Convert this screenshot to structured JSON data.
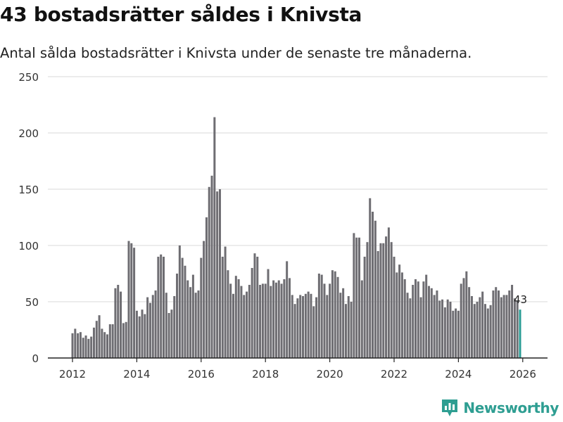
{
  "title": "43 bostadsrätter såldes i Knivsta",
  "subtitle": "Antal sålda bostadsrätter i Knivsta under de senaste tre månaderna.",
  "brand": {
    "name": "Newsworthy",
    "icon": "bar-chart-logo-icon"
  },
  "colors": {
    "bar": "#6e6d72",
    "highlight": "#2a9d95",
    "grid": "#d9d9d9",
    "axis": "#222222",
    "text": "#333333"
  },
  "chart_data": {
    "type": "bar",
    "title": "43 bostadsrätter såldes i Knivsta",
    "xlabel": "",
    "ylabel": "",
    "ylim": [
      0,
      250
    ],
    "yticks": [
      0,
      50,
      100,
      150,
      200,
      250
    ],
    "x_ticks": [
      2012,
      2014,
      2016,
      2018,
      2020,
      2022,
      2024,
      2026
    ],
    "start": {
      "year": 2012,
      "month": 1
    },
    "period": "month",
    "highlight_label": "43",
    "values": [
      22,
      26,
      22,
      23,
      18,
      20,
      17,
      19,
      27,
      33,
      38,
      26,
      23,
      21,
      30,
      30,
      62,
      65,
      59,
      31,
      32,
      104,
      102,
      98,
      42,
      37,
      43,
      39,
      54,
      49,
      56,
      60,
      90,
      92,
      90,
      58,
      40,
      43,
      55,
      75,
      100,
      89,
      82,
      69,
      63,
      74,
      58,
      60,
      89,
      104,
      125,
      152,
      162,
      214,
      148,
      150,
      90,
      99,
      78,
      66,
      57,
      73,
      70,
      64,
      56,
      59,
      65,
      80,
      93,
      90,
      65,
      66,
      66,
      79,
      64,
      69,
      67,
      69,
      66,
      70,
      86,
      71,
      56,
      48,
      53,
      56,
      55,
      57,
      59,
      57,
      46,
      54,
      75,
      74,
      66,
      56,
      66,
      78,
      77,
      72,
      58,
      62,
      48,
      55,
      50,
      111,
      107,
      107,
      69,
      90,
      103,
      142,
      130,
      122,
      95,
      102,
      102,
      108,
      116,
      103,
      90,
      76,
      83,
      76,
      70,
      58,
      53,
      65,
      70,
      68,
      54,
      68,
      74,
      64,
      62,
      56,
      60,
      51,
      52,
      45,
      52,
      50,
      42,
      44,
      42,
      66,
      71,
      77,
      63,
      55,
      48,
      50,
      54,
      59,
      48,
      44,
      47,
      60,
      63,
      60,
      54,
      56,
      56,
      60,
      65,
      53,
      51,
      43
    ]
  }
}
